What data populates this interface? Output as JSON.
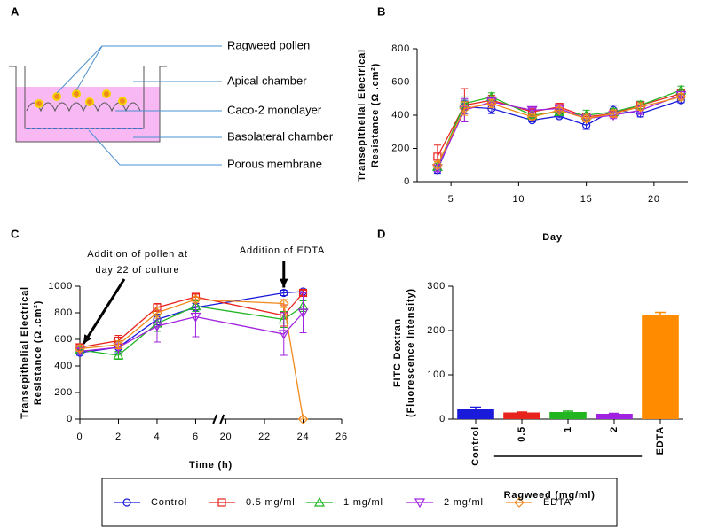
{
  "diagram": {
    "panel": "A",
    "labels": [
      "Ragweed pollen",
      "Apical chamber",
      "Caco-2 monolayer",
      "Basolateral chamber",
      "Porous membrane"
    ]
  },
  "chart_data": [
    {
      "type": "line",
      "panel": "B",
      "ylabel": [
        "Transepithelial Electrical",
        "Resistance (Ω .cm²)"
      ],
      "xlabel": "Day",
      "x": [
        4,
        6,
        8,
        11,
        13,
        15,
        17,
        19,
        22
      ],
      "xlim": [
        2.5,
        22.5
      ],
      "xticks": [
        5,
        10,
        15,
        20
      ],
      "ylim": [
        0,
        800
      ],
      "yticks": [
        0,
        200,
        400,
        600,
        800
      ],
      "series": [
        {
          "color": "#1a1adb",
          "marker": "circle",
          "values": [
            70,
            450,
            440,
            370,
            395,
            340,
            430,
            410,
            490
          ],
          "errors": [
            20,
            40,
            30,
            10,
            10,
            25,
            30,
            20,
            15
          ]
        },
        {
          "color": "#e8231c",
          "marker": "square",
          "values": [
            150,
            460,
            490,
            420,
            450,
            390,
            410,
            460,
            530
          ],
          "errors": [
            70,
            100,
            30,
            15,
            15,
            20,
            15,
            20,
            20
          ]
        },
        {
          "color": "#22b522",
          "marker": "triangle-up",
          "values": [
            90,
            470,
            510,
            400,
            420,
            400,
            420,
            460,
            550
          ],
          "errors": [
            20,
            40,
            25,
            15,
            15,
            30,
            20,
            25,
            25
          ]
        },
        {
          "color": "#a021e0",
          "marker": "triangle-down",
          "values": [
            80,
            430,
            480,
            430,
            440,
            380,
            400,
            430,
            520
          ],
          "errors": [
            20,
            70,
            25,
            15,
            15,
            20,
            20,
            25,
            20
          ]
        },
        {
          "color": "#f08a1c",
          "marker": "diamond",
          "values": [
            100,
            440,
            470,
            390,
            430,
            380,
            410,
            450,
            510
          ],
          "errors": [
            20,
            40,
            25,
            15,
            15,
            20,
            20,
            20,
            20
          ]
        }
      ]
    },
    {
      "type": "line",
      "panel": "C",
      "ylabel": [
        "Transepithelial Electrical",
        "Resistance (Ω .cm²)"
      ],
      "xlabel": "Time (h)",
      "x": [
        0,
        2,
        4,
        6,
        23,
        24
      ],
      "xlim": [
        0,
        26
      ],
      "xsegments": [
        [
          0,
          7
        ],
        [
          19.8,
          26
        ]
      ],
      "xticks": [
        0,
        2,
        4,
        6,
        20,
        22,
        24,
        26
      ],
      "ylim": [
        0,
        1000
      ],
      "yticks": [
        0,
        200,
        400,
        600,
        800,
        1000
      ],
      "annotations": [
        [
          "Addition of pollen at",
          "day 22 of culture"
        ],
        [
          "Addition of EDTA"
        ]
      ],
      "series": [
        {
          "name": "Control",
          "color": "#1a1adb",
          "marker": "circle",
          "values": [
            500,
            540,
            750,
            840,
            950,
            960
          ],
          "errors": [
            20,
            40,
            40,
            30,
            20,
            10
          ]
        },
        {
          "name": "0.5 mg/ml",
          "color": "#e8231c",
          "marker": "square",
          "values": [
            540,
            590,
            840,
            920,
            780,
            950
          ],
          "errors": [
            20,
            40,
            30,
            20,
            80,
            20
          ]
        },
        {
          "name": "1 mg/ml",
          "color": "#22b522",
          "marker": "triangle-up",
          "values": [
            520,
            480,
            720,
            850,
            750,
            850
          ],
          "errors": [
            20,
            30,
            60,
            40,
            60,
            40
          ]
        },
        {
          "name": "2 mg/ml",
          "color": "#a021e0",
          "marker": "triangle-down",
          "values": [
            510,
            540,
            700,
            770,
            640,
            800
          ],
          "errors": [
            20,
            50,
            120,
            150,
            160,
            150
          ]
        },
        {
          "name": "EDTA",
          "color": "#f08a1c",
          "marker": "diamond",
          "values": [
            530,
            560,
            800,
            900,
            870,
            0
          ],
          "errors": [
            20,
            30,
            40,
            20,
            30,
            0
          ]
        }
      ]
    },
    {
      "type": "bar",
      "panel": "D",
      "ylabel": [
        "FITC Dextran",
        "(Fluorescence Intensity)"
      ],
      "xlabel": "Ragweed (mg/ml)",
      "categories": [
        "Control",
        "0.5",
        "1",
        "2",
        "EDTA"
      ],
      "values": [
        22,
        15,
        16,
        12,
        235
      ],
      "errors": [
        5,
        1,
        2,
        1,
        6
      ],
      "colors": [
        "#1a1adb",
        "#e8231c",
        "#22b522",
        "#a021e0",
        "#ff8c00"
      ],
      "ylim": [
        0,
        300
      ],
      "yticks": [
        0,
        100,
        200,
        300
      ]
    }
  ]
}
